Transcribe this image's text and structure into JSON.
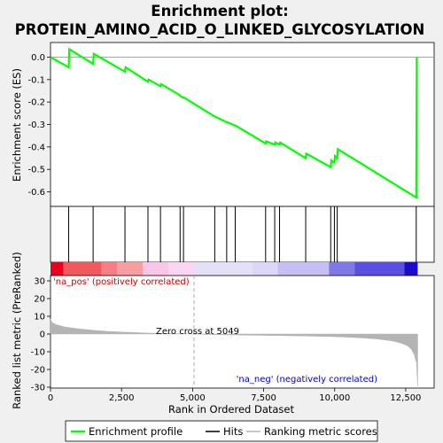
{
  "chart_data": {
    "type": "line",
    "title_lines": [
      "Enrichment plot:",
      "PROTEIN_AMINO_ACID_O_LINKED_GLYCOSYLATION"
    ],
    "x_range": [
      0,
      13500
    ],
    "x_ticks": [
      0,
      2500,
      5000,
      7500,
      10000,
      12500
    ],
    "x_tick_labels": [
      "0",
      "2,500",
      "5,000",
      "7,500",
      "10,000",
      "12,500"
    ],
    "xlabel": "Rank in Ordered Dataset",
    "es_panel": {
      "ylabel": "Enrichment score (ES)",
      "ylim": [
        -0.665,
        0.065
      ],
      "y_ticks": [
        0.0,
        -0.1,
        -0.2,
        -0.3,
        -0.4,
        -0.5,
        -0.6
      ],
      "y_tick_labels": [
        "0.0",
        "-0.1",
        "-0.2",
        "-0.3",
        "-0.4",
        "-0.5",
        "-0.6"
      ],
      "series": [
        {
          "name": "Enrichment profile",
          "color": "#00ff00",
          "x": [
            0,
            640,
            660,
            1500,
            1520,
            2620,
            2640,
            3430,
            3450,
            3870,
            3890,
            4560,
            4580,
            4680,
            4700,
            5780,
            5800,
            6200,
            6220,
            6500,
            6520,
            7570,
            7590,
            7890,
            7910,
            8060,
            8080,
            8980,
            9000,
            9860,
            9880,
            9990,
            10010,
            10090,
            10110,
            12870,
            12890
          ],
          "y": [
            0.0,
            -0.045,
            0.035,
            -0.03,
            0.015,
            -0.065,
            -0.045,
            -0.11,
            -0.1,
            -0.13,
            -0.12,
            -0.17,
            -0.175,
            -0.18,
            -0.18,
            -0.265,
            -0.265,
            -0.29,
            -0.29,
            -0.305,
            -0.305,
            -0.385,
            -0.375,
            -0.39,
            -0.38,
            -0.39,
            -0.38,
            -0.45,
            -0.43,
            -0.49,
            -0.46,
            -0.47,
            -0.44,
            -0.45,
            -0.41,
            -0.625,
            0.0
          ]
        }
      ]
    },
    "hits_panel": {
      "hit_positions": [
        640,
        1500,
        2620,
        3430,
        3870,
        4560,
        4680,
        5780,
        6200,
        6500,
        7570,
        7890,
        8060,
        8980,
        9860,
        9990,
        10090,
        12870
      ]
    },
    "color_bar": {
      "segments": [
        {
          "from": 0,
          "to": 450,
          "color": "#e8001f"
        },
        {
          "from": 450,
          "to": 1800,
          "color": "#f05a5e"
        },
        {
          "from": 1800,
          "to": 2350,
          "color": "#f57f85"
        },
        {
          "from": 2350,
          "to": 3250,
          "color": "#f79ea2"
        },
        {
          "from": 3250,
          "to": 4150,
          "color": "#f9c6e8"
        },
        {
          "from": 4150,
          "to": 5050,
          "color": "#fad6f0"
        },
        {
          "from": 5050,
          "to": 7100,
          "color": "#e4e0f7"
        },
        {
          "from": 7100,
          "to": 8000,
          "color": "#dcd6f7"
        },
        {
          "from": 8000,
          "to": 9800,
          "color": "#c6bff3"
        },
        {
          "from": 9800,
          "to": 10700,
          "color": "#7f79e8"
        },
        {
          "from": 10700,
          "to": 12450,
          "color": "#5a4fe0"
        },
        {
          "from": 12450,
          "to": 12920,
          "color": "#1a0ccc"
        }
      ]
    },
    "metric_panel": {
      "ylabel": "Ranked list metric (PreRanked)",
      "ylim": [
        -30.5,
        33
      ],
      "y_ticks": [
        30,
        20,
        10,
        0,
        -10,
        -20,
        -30
      ],
      "y_tick_labels": [
        "30",
        "20",
        "10",
        "0",
        "-10",
        "-20",
        "-30"
      ],
      "series": [
        {
          "name": "Ranking metric scores",
          "color": "#b4b4b4",
          "x": [
            0,
            50,
            200,
            500,
            1000,
            1500,
            2000,
            2500,
            3000,
            3500,
            4000,
            4500,
            5049,
            5500,
            6000,
            7000,
            8000,
            9000,
            10000,
            10500,
            11000,
            11500,
            12000,
            12300,
            12550,
            12700,
            12800,
            12880,
            12920
          ],
          "y": [
            8.5,
            6.5,
            5.3,
            4.0,
            2.9,
            2.1,
            1.5,
            1.1,
            0.8,
            0.5,
            0.35,
            0.2,
            0.0,
            -0.2,
            -0.4,
            -0.6,
            -0.85,
            -1.1,
            -1.5,
            -1.8,
            -2.2,
            -2.8,
            -3.8,
            -4.9,
            -6.5,
            -8.5,
            -11.5,
            -16.0,
            -29.5
          ]
        }
      ],
      "zero_cross": 5049,
      "annotations": {
        "pos": "'na_pos' (positively correlated)",
        "neg": "'na_neg' (negatively correlated)",
        "zero": "Zero cross at 5049"
      }
    },
    "legend": {
      "placement": "bottom",
      "entries": [
        {
          "label": "Enrichment profile",
          "color": "#00ff00"
        },
        {
          "label": "Hits",
          "color": "#000000"
        },
        {
          "label": "Ranking metric scores",
          "color": "#b4b4b4"
        }
      ]
    }
  }
}
